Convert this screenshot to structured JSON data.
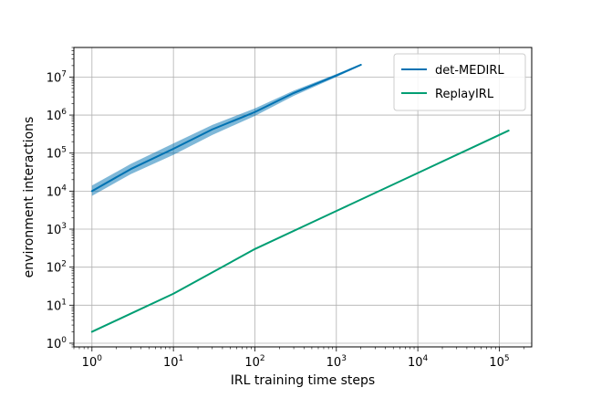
{
  "chart_data": {
    "type": "line",
    "title": "",
    "xlabel": "IRL training time steps",
    "ylabel": "environment interactions",
    "xscale": "log",
    "yscale": "log",
    "xlim": [
      0.6,
      250000
    ],
    "ylim": [
      0.8,
      60000000
    ],
    "x_ticks": [
      {
        "value": 1,
        "base": "10",
        "exp": "0"
      },
      {
        "value": 10,
        "base": "10",
        "exp": "1"
      },
      {
        "value": 100,
        "base": "10",
        "exp": "2"
      },
      {
        "value": 1000,
        "base": "10",
        "exp": "3"
      },
      {
        "value": 10000,
        "base": "10",
        "exp": "4"
      },
      {
        "value": 100000,
        "base": "10",
        "exp": "5"
      }
    ],
    "y_ticks": [
      {
        "value": 1,
        "base": "10",
        "exp": "0"
      },
      {
        "value": 10,
        "base": "10",
        "exp": "1"
      },
      {
        "value": 100,
        "base": "10",
        "exp": "2"
      },
      {
        "value": 1000,
        "base": "10",
        "exp": "3"
      },
      {
        "value": 10000,
        "base": "10",
        "exp": "4"
      },
      {
        "value": 100000,
        "base": "10",
        "exp": "5"
      },
      {
        "value": 1000000,
        "base": "10",
        "exp": "6"
      },
      {
        "value": 10000000,
        "base": "10",
        "exp": "7"
      }
    ],
    "grid": true,
    "legend_position": "top-right",
    "series": [
      {
        "name": "det-MEDIRL",
        "color": "#0072b2",
        "band_color": "#0072b2",
        "x": [
          1,
          3,
          10,
          30,
          100,
          300,
          1000,
          2000
        ],
        "y": [
          10000,
          38000,
          130000,
          420000,
          1200000,
          3800000,
          11000000,
          21000000
        ],
        "lower": [
          7500,
          28000,
          90000,
          300000,
          950000,
          3200000,
          10000000,
          20000000
        ],
        "upper": [
          14000,
          52000,
          180000,
          550000,
          1500000,
          4400000,
          12000000,
          22000000
        ]
      },
      {
        "name": "ReplayIRL",
        "color": "#009e73",
        "x": [
          1,
          3,
          10,
          100,
          1000,
          10000,
          130000
        ],
        "y": [
          2,
          6,
          20,
          300,
          3000,
          30000,
          390000
        ]
      }
    ]
  }
}
